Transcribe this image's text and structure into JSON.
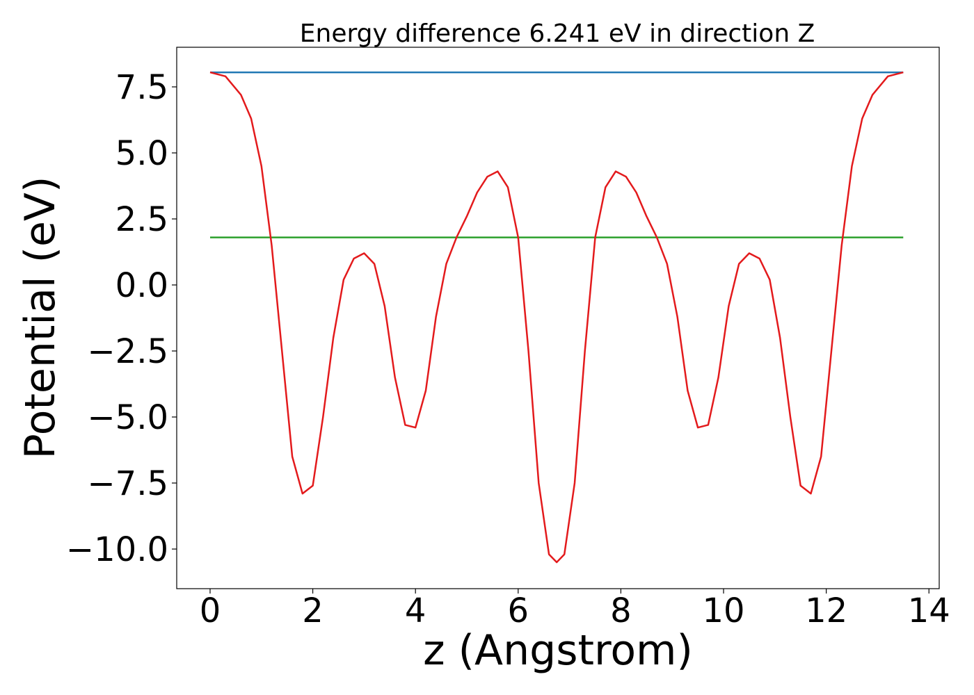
{
  "chart_data": {
    "type": "line",
    "title": "Energy difference 6.241 eV in direction Z",
    "xlabel": "z (Angstrom)",
    "ylabel": "Potential (eV)",
    "xlim": [
      -0.65,
      14.2
    ],
    "ylim": [
      -11.5,
      9.0
    ],
    "xticks": [
      0,
      2,
      4,
      6,
      8,
      10,
      12,
      14
    ],
    "xtick_labels": [
      "0",
      "2",
      "4",
      "6",
      "8",
      "10",
      "12",
      "14"
    ],
    "yticks": [
      -10.0,
      -7.5,
      -5.0,
      -2.5,
      0.0,
      2.5,
      5.0,
      7.5
    ],
    "ytick_labels": [
      "−10.0",
      "−7.5",
      "−5.0",
      "−2.5",
      "0.0",
      "2.5",
      "5.0",
      "7.5"
    ],
    "grid": false,
    "series": [
      {
        "color": "#1f77b4",
        "x": [
          0,
          13.5
        ],
        "y": [
          8.05,
          8.05
        ]
      },
      {
        "color": "#2ca02c",
        "x": [
          0,
          13.5
        ],
        "y": [
          1.8,
          1.8
        ]
      },
      {
        "color": "#e31a1c",
        "x": [
          0,
          0.3,
          0.6,
          0.8,
          1.0,
          1.2,
          1.4,
          1.6,
          1.8,
          2.0,
          2.2,
          2.4,
          2.6,
          2.8,
          3.0,
          3.2,
          3.4,
          3.6,
          3.8,
          4.0,
          4.2,
          4.4,
          4.6,
          4.8,
          5.0,
          5.2,
          5.4,
          5.6,
          5.8,
          6.0,
          6.2,
          6.4,
          6.6,
          6.75,
          6.9,
          7.1,
          7.3,
          7.5,
          7.7,
          7.9,
          8.1,
          8.3,
          8.5,
          8.7,
          8.9,
          9.1,
          9.3,
          9.5,
          9.7,
          9.9,
          10.1,
          10.3,
          10.5,
          10.7,
          10.9,
          11.1,
          11.3,
          11.5,
          11.7,
          11.9,
          12.1,
          12.3,
          12.5,
          12.7,
          12.9,
          13.2,
          13.5
        ],
        "y": [
          8.05,
          7.9,
          7.2,
          6.3,
          4.5,
          1.5,
          -2.5,
          -6.5,
          -7.9,
          -7.6,
          -5.0,
          -2.0,
          0.2,
          1.0,
          1.2,
          0.8,
          -0.8,
          -3.5,
          -5.3,
          -5.4,
          -4.0,
          -1.2,
          0.8,
          1.8,
          2.6,
          3.5,
          4.1,
          4.3,
          3.7,
          1.8,
          -2.5,
          -7.5,
          -10.2,
          -10.5,
          -10.2,
          -7.5,
          -2.5,
          1.8,
          3.7,
          4.3,
          4.1,
          3.5,
          2.6,
          1.8,
          0.8,
          -1.2,
          -4.0,
          -5.4,
          -5.3,
          -3.5,
          -0.8,
          0.8,
          1.2,
          1.0,
          0.2,
          -2.0,
          -5.0,
          -7.6,
          -7.9,
          -6.5,
          -2.5,
          1.5,
          4.5,
          6.3,
          7.2,
          7.9,
          8.05
        ]
      }
    ]
  }
}
